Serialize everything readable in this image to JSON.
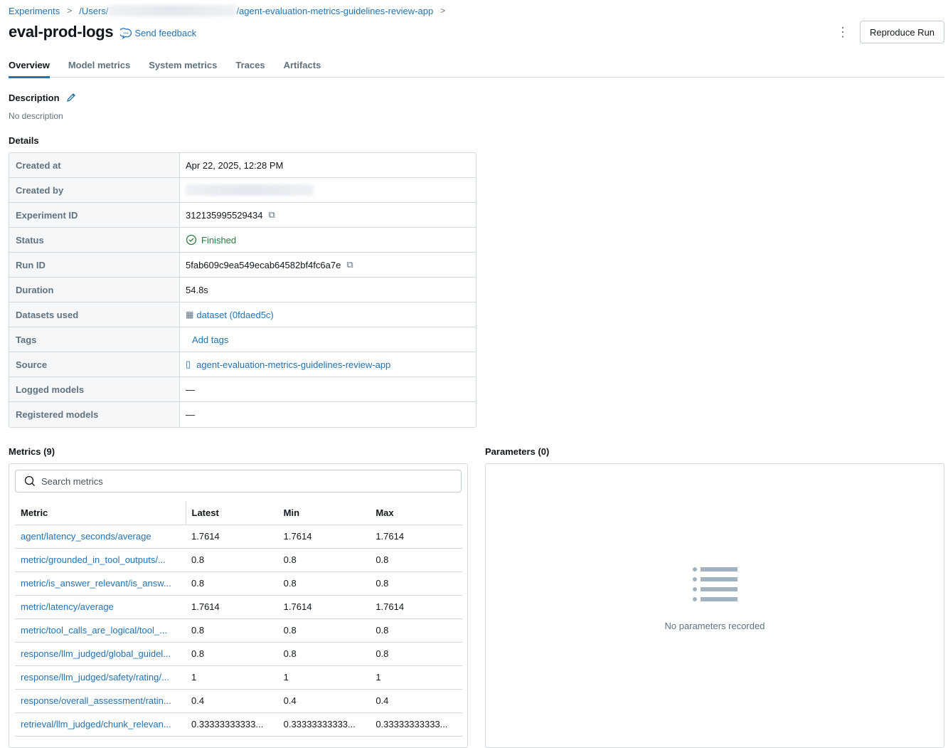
{
  "breadcrumb": {
    "items": [
      "Experiments",
      "/Users/",
      "/agent-evaluation-metrics-guidelines-review-app"
    ]
  },
  "header": {
    "title": "eval-prod-logs",
    "feedback": "Send feedback",
    "reproduce": "Reproduce Run"
  },
  "tabs": [
    {
      "label": "Overview",
      "active": true
    },
    {
      "label": "Model metrics"
    },
    {
      "label": "System metrics"
    },
    {
      "label": "Traces"
    },
    {
      "label": "Artifacts"
    }
  ],
  "description": {
    "heading": "Description",
    "text": "No description"
  },
  "details": {
    "heading": "Details",
    "rows": {
      "created_at": {
        "label": "Created at",
        "value": "Apr 22, 2025, 12:28 PM"
      },
      "created_by": {
        "label": "Created by"
      },
      "experiment_id": {
        "label": "Experiment ID",
        "value": "312135995529434"
      },
      "status": {
        "label": "Status",
        "value": "Finished"
      },
      "run_id": {
        "label": "Run ID",
        "value": "5fab609c9ea549ecab64582bf4fc6a7e"
      },
      "duration": {
        "label": "Duration",
        "value": "54.8s"
      },
      "datasets": {
        "label": "Datasets used",
        "value": "dataset (0fdaed5c)"
      },
      "tags": {
        "label": "Tags",
        "value": "Add tags"
      },
      "source": {
        "label": "Source",
        "value": "agent-evaluation-metrics-guidelines-review-app"
      },
      "logged_models": {
        "label": "Logged models",
        "value": "—"
      },
      "registered_models": {
        "label": "Registered models",
        "value": "—"
      }
    }
  },
  "metrics": {
    "heading": "Metrics (9)",
    "search_placeholder": "Search metrics",
    "columns": [
      "Metric",
      "Latest",
      "Min",
      "Max"
    ],
    "rows": [
      [
        "agent/latency_seconds/average",
        "1.7614",
        "1.7614",
        "1.7614"
      ],
      [
        "metric/grounded_in_tool_outputs/...",
        "0.8",
        "0.8",
        "0.8"
      ],
      [
        "metric/is_answer_relevant/is_answ...",
        "0.8",
        "0.8",
        "0.8"
      ],
      [
        "metric/latency/average",
        "1.7614",
        "1.7614",
        "1.7614"
      ],
      [
        "metric/tool_calls_are_logical/tool_...",
        "0.8",
        "0.8",
        "0.8"
      ],
      [
        "response/llm_judged/global_guidel...",
        "0.8",
        "0.8",
        "0.8"
      ],
      [
        "response/llm_judged/safety/rating/...",
        "1",
        "1",
        "1"
      ],
      [
        "response/overall_assessment/ratin...",
        "0.4",
        "0.4",
        "0.4"
      ],
      [
        "retrieval/llm_judged/chunk_relevan...",
        "0.33333333333...",
        "0.33333333333...",
        "0.33333333333..."
      ]
    ]
  },
  "parameters": {
    "heading": "Parameters (0)",
    "empty": "No parameters recorded"
  }
}
